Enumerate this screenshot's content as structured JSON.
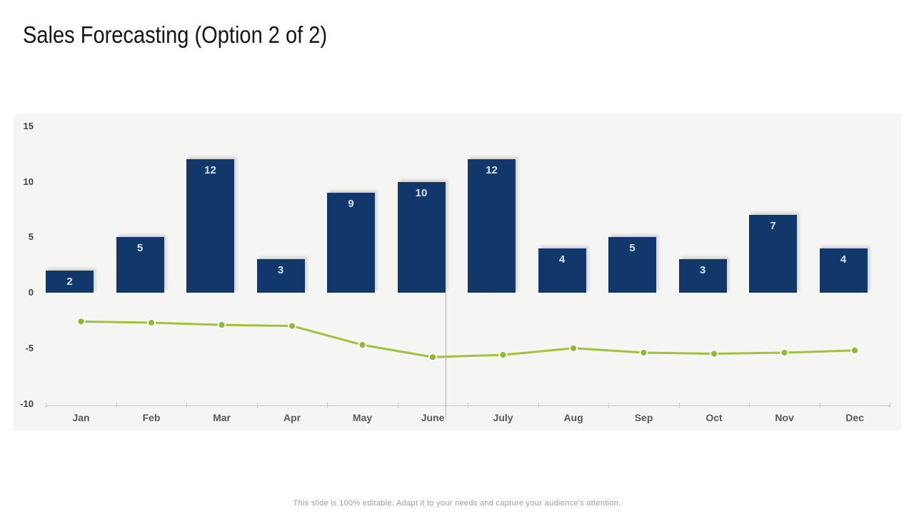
{
  "slide": {
    "title": "Sales Forecasting (Option 2 of 2)",
    "footer": "This slide is  100% editable.  Adapt it  to your needs and capture your audience's attention."
  },
  "chart_data": {
    "type": "bar",
    "subtype": "combo-bar-line",
    "title": "Sales Forecasting (Option 2 of 2)",
    "categories": [
      "Jan",
      "Feb",
      "Mar",
      "Apr",
      "May",
      "June",
      "July",
      "Aug",
      "Sep",
      "Oct",
      "Nov",
      "Dec"
    ],
    "series": [
      {
        "name": "bars",
        "type": "bar",
        "values": [
          2,
          5,
          12,
          3,
          9,
          10,
          12,
          4,
          5,
          3,
          7,
          4
        ],
        "color": "#12386b",
        "label_color": "#d6e4f2"
      },
      {
        "name": "line",
        "type": "line",
        "values": [
          -2.6,
          -2.7,
          -2.9,
          -3.0,
          -4.7,
          -5.8,
          -5.6,
          -5.0,
          -5.4,
          -5.5,
          -5.4,
          -5.2
        ],
        "color": "#a2c13b",
        "marker_color": "#8fb834",
        "marker_ring_color": "#ffffff"
      }
    ],
    "xlabel": "",
    "ylabel": "",
    "y_axis": {
      "ticks": [
        15,
        10,
        5,
        0,
        -5,
        -10
      ],
      "min": -10,
      "max": 15
    },
    "grid": false,
    "legend": false,
    "panel_bg": "#f5f5f4",
    "axis_color": "#c6c6c6",
    "divider_after_category": "June",
    "divider_color": "#b1b1b1"
  }
}
